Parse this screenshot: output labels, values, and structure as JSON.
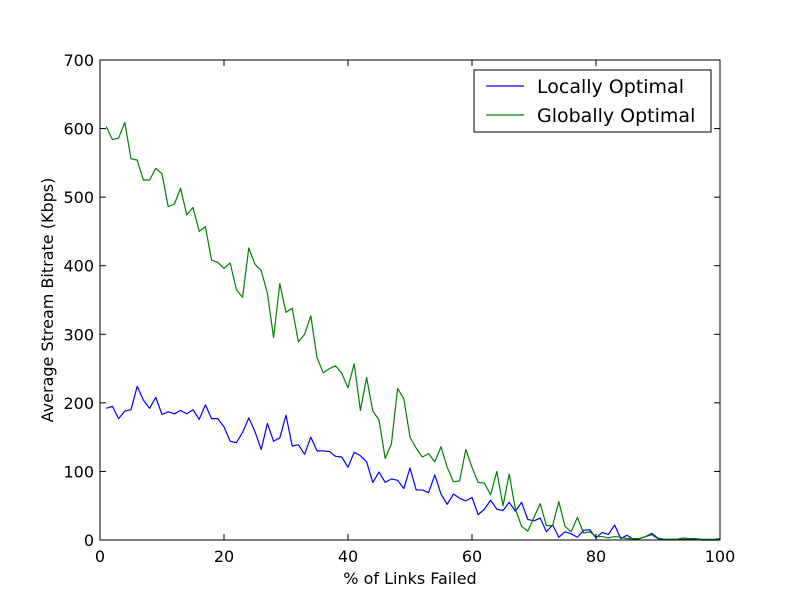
{
  "chart_data": {
    "type": "line",
    "title": "",
    "xlabel": "% of Links Failed",
    "ylabel": "Average Stream Bitrate (Kbps)",
    "xlim": [
      0,
      100
    ],
    "ylim": [
      0,
      700
    ],
    "xticks": [
      0,
      20,
      40,
      60,
      80,
      100
    ],
    "yticks": [
      0,
      100,
      200,
      300,
      400,
      500,
      600,
      700
    ],
    "grid": false,
    "legend_position": "top-right",
    "series": [
      {
        "name": "Locally Optimal",
        "color": "#0000ff",
        "x": [
          1,
          2,
          3,
          4,
          5,
          6,
          7,
          8,
          9,
          10,
          11,
          12,
          13,
          14,
          15,
          16,
          17,
          18,
          19,
          20,
          21,
          22,
          23,
          24,
          25,
          26,
          27,
          28,
          29,
          30,
          31,
          32,
          33,
          34,
          35,
          36,
          37,
          38,
          39,
          40,
          41,
          42,
          43,
          44,
          45,
          46,
          47,
          48,
          49,
          50,
          51,
          52,
          53,
          54,
          55,
          56,
          57,
          58,
          59,
          60,
          61,
          62,
          63,
          64,
          65,
          66,
          67,
          68,
          69,
          70,
          71,
          72,
          73,
          74,
          75,
          76,
          77,
          78,
          79,
          80,
          81,
          82,
          83,
          84,
          85,
          86,
          87,
          88,
          89,
          90,
          91,
          92,
          93,
          94,
          95,
          96,
          97,
          98,
          99,
          100
        ],
        "y": [
          192,
          195,
          177,
          188,
          190,
          224,
          204,
          192,
          208,
          183,
          187,
          184,
          189,
          184,
          190,
          176,
          197,
          177,
          177,
          165,
          144,
          142,
          157,
          178,
          158,
          132,
          170,
          144,
          149,
          182,
          137,
          139,
          125,
          150,
          130,
          130,
          129,
          122,
          121,
          106,
          128,
          123,
          114,
          84,
          99,
          84,
          89,
          87,
          75,
          105,
          73,
          73,
          69,
          95,
          67,
          52,
          67,
          61,
          57,
          62,
          37,
          45,
          58,
          45,
          43,
          55,
          42,
          55,
          30,
          28,
          32,
          12,
          22,
          4,
          12,
          9,
          4,
          14,
          15,
          3,
          11,
          8,
          22,
          2,
          7,
          1,
          2,
          5,
          8,
          2,
          1,
          1,
          1,
          1,
          1,
          1,
          0,
          0,
          0,
          0
        ]
      },
      {
        "name": "Globally Optimal",
        "color": "#008000",
        "x": [
          1,
          2,
          3,
          4,
          5,
          6,
          7,
          8,
          9,
          10,
          11,
          12,
          13,
          14,
          15,
          16,
          17,
          18,
          19,
          20,
          21,
          22,
          23,
          24,
          25,
          26,
          27,
          28,
          29,
          30,
          31,
          32,
          33,
          34,
          35,
          36,
          37,
          38,
          39,
          40,
          41,
          42,
          43,
          44,
          45,
          46,
          47,
          48,
          49,
          50,
          51,
          52,
          53,
          54,
          55,
          56,
          57,
          58,
          59,
          60,
          61,
          62,
          63,
          64,
          65,
          66,
          67,
          68,
          69,
          70,
          71,
          72,
          73,
          74,
          75,
          76,
          77,
          78,
          79,
          80,
          81,
          82,
          83,
          84,
          85,
          86,
          87,
          88,
          89,
          90,
          91,
          92,
          93,
          94,
          95,
          96,
          97,
          98,
          99,
          100
        ],
        "y": [
          603,
          584,
          586,
          609,
          556,
          554,
          525,
          525,
          542,
          534,
          486,
          490,
          513,
          474,
          485,
          450,
          457,
          408,
          405,
          396,
          404,
          365,
          354,
          426,
          402,
          393,
          360,
          295,
          374,
          332,
          338,
          289,
          300,
          327,
          266,
          244,
          250,
          254,
          243,
          222,
          257,
          189,
          237,
          188,
          175,
          119,
          140,
          221,
          206,
          150,
          134,
          121,
          126,
          114,
          136,
          106,
          85,
          86,
          132,
          106,
          84,
          83,
          66,
          100,
          50,
          96,
          45,
          20,
          13,
          33,
          53,
          21,
          21,
          56,
          20,
          12,
          33,
          10,
          12,
          5,
          5,
          3,
          5,
          4,
          2,
          2,
          2,
          5,
          10,
          3,
          1,
          1,
          1,
          3,
          2,
          2,
          1,
          1,
          1,
          2
        ]
      }
    ]
  }
}
